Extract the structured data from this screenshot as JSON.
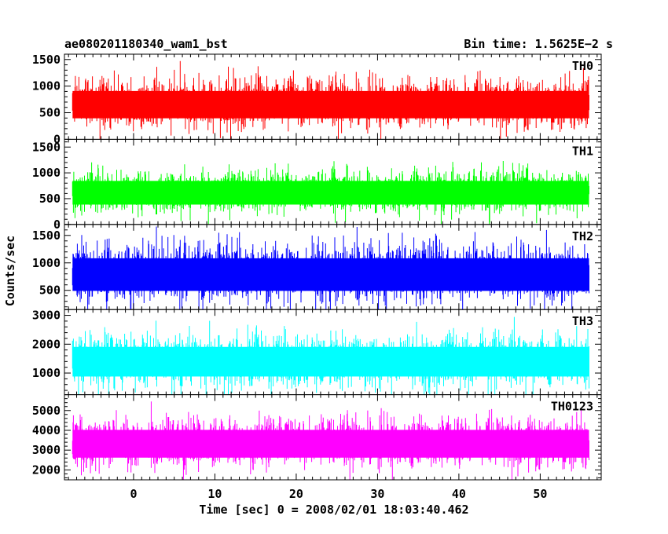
{
  "header": {
    "title": "ae080201180340_wam1_bst",
    "bin_time": "Bin time: 1.5625E−2 s"
  },
  "chart_data": {
    "type": "line",
    "xlabel": "Time [sec] 0 = 2008/02/01 18:03:40.462",
    "ylabel": "Counts/sec",
    "xlim": [
      -8.5,
      57.5
    ],
    "x_ticks": [
      0,
      10,
      20,
      30,
      40,
      50
    ],
    "x_tick_labels": [
      "0",
      "10",
      "20",
      "30",
      "40",
      "50"
    ],
    "data_x_range": [
      -7.5,
      56
    ],
    "panels": [
      {
        "name": "TH0",
        "color": "#ff0000",
        "ylim": [
          0,
          1600
        ],
        "y_ticks": [
          0,
          500,
          1000,
          1500
        ],
        "y_tick_labels": [
          "0",
          "500",
          "1000",
          "1500"
        ],
        "mean": 680,
        "noise": 190,
        "band_min": 100,
        "band_max": 1550
      },
      {
        "name": "TH1",
        "color": "#00ff00",
        "ylim": [
          0,
          1650
        ],
        "y_ticks": [
          0,
          500,
          1000,
          1500
        ],
        "y_tick_labels": [
          "0",
          "500",
          "1000",
          "1500"
        ],
        "mean": 640,
        "noise": 170,
        "band_min": 60,
        "band_max": 1600
      },
      {
        "name": "TH2",
        "color": "#0000ff",
        "ylim": [
          150,
          1700
        ],
        "y_ticks": [
          500,
          1000,
          1500
        ],
        "y_tick_labels": [
          "500",
          "1000",
          "1500"
        ],
        "mean": 820,
        "noise": 220,
        "band_min": 200,
        "band_max": 1700
      },
      {
        "name": "TH3",
        "color": "#00ffff",
        "ylim": [
          250,
          3200
        ],
        "y_ticks": [
          1000,
          2000,
          3000
        ],
        "y_tick_labels": [
          "1000",
          "2000",
          "3000"
        ],
        "mean": 1450,
        "noise": 380,
        "band_min": 400,
        "band_max": 3200
      },
      {
        "name": "TH0123",
        "color": "#ff00ff",
        "ylim": [
          1500,
          5800
        ],
        "y_ticks": [
          2000,
          3000,
          4000,
          5000
        ],
        "y_tick_labels": [
          "2000",
          "3000",
          "4000",
          "5000"
        ],
        "mean": 3400,
        "noise": 520,
        "band_min": 1500,
        "band_max": 5800
      }
    ]
  }
}
